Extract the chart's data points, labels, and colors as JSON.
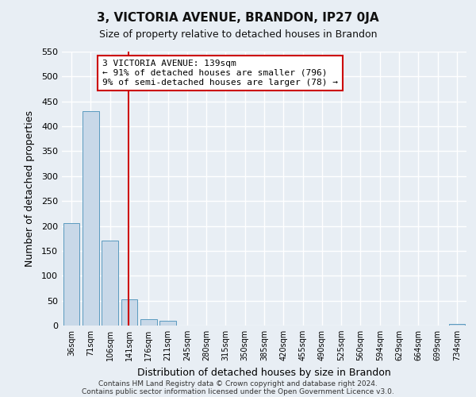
{
  "title": "3, VICTORIA AVENUE, BRANDON, IP27 0JA",
  "subtitle": "Size of property relative to detached houses in Brandon",
  "xlabel": "Distribution of detached houses by size in Brandon",
  "ylabel": "Number of detached properties",
  "bar_color": "#c8d8e8",
  "bar_edge_color": "#5a9abf",
  "categories": [
    "36sqm",
    "71sqm",
    "106sqm",
    "141sqm",
    "176sqm",
    "211sqm",
    "245sqm",
    "280sqm",
    "315sqm",
    "350sqm",
    "385sqm",
    "420sqm",
    "455sqm",
    "490sqm",
    "525sqm",
    "560sqm",
    "594sqm",
    "629sqm",
    "664sqm",
    "699sqm",
    "734sqm"
  ],
  "values": [
    206,
    430,
    170,
    52,
    13,
    9,
    0,
    0,
    0,
    0,
    0,
    0,
    0,
    0,
    0,
    0,
    0,
    0,
    0,
    0,
    3
  ],
  "ylim": [
    0,
    550
  ],
  "yticks": [
    0,
    50,
    100,
    150,
    200,
    250,
    300,
    350,
    400,
    450,
    500,
    550
  ],
  "marker_label": "3 VICTORIA AVENUE: 139sqm",
  "annotation_line1": "← 91% of detached houses are smaller (796)",
  "annotation_line2": "9% of semi-detached houses are larger (78) →",
  "annotation_box_color": "#ffffff",
  "annotation_box_edge": "#cc0000",
  "marker_line_color": "#cc0000",
  "footer1": "Contains HM Land Registry data © Crown copyright and database right 2024.",
  "footer2": "Contains public sector information licensed under the Open Government Licence v3.0.",
  "background_color": "#e8eef4",
  "plot_bg_color": "#e8eef4",
  "grid_color": "#ffffff"
}
